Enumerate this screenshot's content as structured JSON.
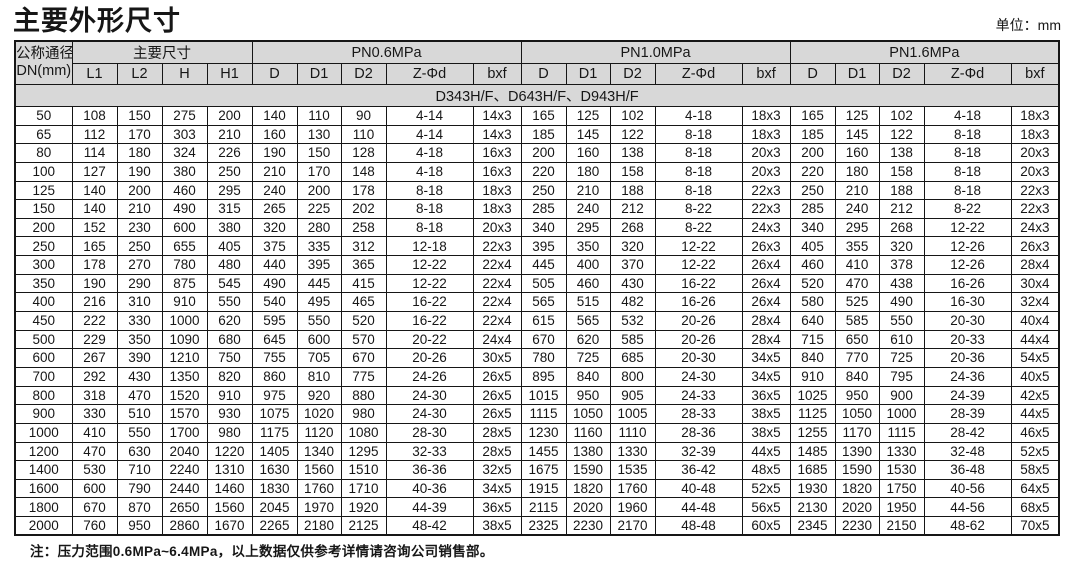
{
  "page": {
    "title": "主要外形尺寸",
    "unit_label": "单位：mm",
    "note": "注：压力范围0.6MPa~6.4MPa，以上数据仅供参考详情请咨询公司销售部。"
  },
  "table": {
    "dn_header_line1": "公称通径",
    "dn_header_line2": "DN(mm)",
    "groups": [
      {
        "label": "主要尺寸",
        "cols": [
          "L1",
          "L2",
          "H",
          "H1"
        ]
      },
      {
        "label": "PN0.6MPa",
        "cols": [
          "D",
          "D1",
          "D2",
          "Z-Φd",
          "bxf"
        ]
      },
      {
        "label": "PN1.0MPa",
        "cols": [
          "D",
          "D1",
          "D2",
          "Z-Φd",
          "bxf"
        ]
      },
      {
        "label": "PN1.6MPa",
        "cols": [
          "D",
          "D1",
          "D2",
          "Z-Φd",
          "bxf"
        ]
      }
    ],
    "model_band": "D343H/F、D643H/F、D943H/F",
    "rows": [
      [
        "50",
        "108",
        "150",
        "275",
        "200",
        "140",
        "110",
        "90",
        "4-14",
        "14x3",
        "165",
        "125",
        "102",
        "4-18",
        "18x3",
        "165",
        "125",
        "102",
        "4-18",
        "18x3"
      ],
      [
        "65",
        "112",
        "170",
        "303",
        "210",
        "160",
        "130",
        "110",
        "4-14",
        "14x3",
        "185",
        "145",
        "122",
        "8-18",
        "18x3",
        "185",
        "145",
        "122",
        "8-18",
        "18x3"
      ],
      [
        "80",
        "114",
        "180",
        "324",
        "226",
        "190",
        "150",
        "128",
        "4-18",
        "16x3",
        "200",
        "160",
        "138",
        "8-18",
        "20x3",
        "200",
        "160",
        "138",
        "8-18",
        "20x3"
      ],
      [
        "100",
        "127",
        "190",
        "380",
        "250",
        "210",
        "170",
        "148",
        "4-18",
        "16x3",
        "220",
        "180",
        "158",
        "8-18",
        "20x3",
        "220",
        "180",
        "158",
        "8-18",
        "20x3"
      ],
      [
        "125",
        "140",
        "200",
        "460",
        "295",
        "240",
        "200",
        "178",
        "8-18",
        "18x3",
        "250",
        "210",
        "188",
        "8-18",
        "22x3",
        "250",
        "210",
        "188",
        "8-18",
        "22x3"
      ],
      [
        "150",
        "140",
        "210",
        "490",
        "315",
        "265",
        "225",
        "202",
        "8-18",
        "18x3",
        "285",
        "240",
        "212",
        "8-22",
        "22x3",
        "285",
        "240",
        "212",
        "8-22",
        "22x3"
      ],
      [
        "200",
        "152",
        "230",
        "600",
        "380",
        "320",
        "280",
        "258",
        "8-18",
        "20x3",
        "340",
        "295",
        "268",
        "8-22",
        "24x3",
        "340",
        "295",
        "268",
        "12-22",
        "24x3"
      ],
      [
        "250",
        "165",
        "250",
        "655",
        "405",
        "375",
        "335",
        "312",
        "12-18",
        "22x3",
        "395",
        "350",
        "320",
        "12-22",
        "26x3",
        "405",
        "355",
        "320",
        "12-26",
        "26x3"
      ],
      [
        "300",
        "178",
        "270",
        "780",
        "480",
        "440",
        "395",
        "365",
        "12-22",
        "22x4",
        "445",
        "400",
        "370",
        "12-22",
        "26x4",
        "460",
        "410",
        "378",
        "12-26",
        "28x4"
      ],
      [
        "350",
        "190",
        "290",
        "875",
        "545",
        "490",
        "445",
        "415",
        "12-22",
        "22x4",
        "505",
        "460",
        "430",
        "16-22",
        "26x4",
        "520",
        "470",
        "438",
        "16-26",
        "30x4"
      ],
      [
        "400",
        "216",
        "310",
        "910",
        "550",
        "540",
        "495",
        "465",
        "16-22",
        "22x4",
        "565",
        "515",
        "482",
        "16-26",
        "26x4",
        "580",
        "525",
        "490",
        "16-30",
        "32x4"
      ],
      [
        "450",
        "222",
        "330",
        "1000",
        "620",
        "595",
        "550",
        "520",
        "16-22",
        "22x4",
        "615",
        "565",
        "532",
        "20-26",
        "28x4",
        "640",
        "585",
        "550",
        "20-30",
        "40x4"
      ],
      [
        "500",
        "229",
        "350",
        "1090",
        "680",
        "645",
        "600",
        "570",
        "20-22",
        "24x4",
        "670",
        "620",
        "585",
        "20-26",
        "28x4",
        "715",
        "650",
        "610",
        "20-33",
        "44x4"
      ],
      [
        "600",
        "267",
        "390",
        "1210",
        "750",
        "755",
        "705",
        "670",
        "20-26",
        "30x5",
        "780",
        "725",
        "685",
        "20-30",
        "34x5",
        "840",
        "770",
        "725",
        "20-36",
        "54x5"
      ],
      [
        "700",
        "292",
        "430",
        "1350",
        "820",
        "860",
        "810",
        "775",
        "24-26",
        "26x5",
        "895",
        "840",
        "800",
        "24-30",
        "34x5",
        "910",
        "840",
        "795",
        "24-36",
        "40x5"
      ],
      [
        "800",
        "318",
        "470",
        "1520",
        "910",
        "975",
        "920",
        "880",
        "24-30",
        "26x5",
        "1015",
        "950",
        "905",
        "24-33",
        "36x5",
        "1025",
        "950",
        "900",
        "24-39",
        "42x5"
      ],
      [
        "900",
        "330",
        "510",
        "1570",
        "930",
        "1075",
        "1020",
        "980",
        "24-30",
        "26x5",
        "1115",
        "1050",
        "1005",
        "28-33",
        "38x5",
        "1125",
        "1050",
        "1000",
        "28-39",
        "44x5"
      ],
      [
        "1000",
        "410",
        "550",
        "1700",
        "980",
        "1175",
        "1120",
        "1080",
        "28-30",
        "28x5",
        "1230",
        "1160",
        "1110",
        "28-36",
        "38x5",
        "1255",
        "1170",
        "1115",
        "28-42",
        "46x5"
      ],
      [
        "1200",
        "470",
        "630",
        "2040",
        "1220",
        "1405",
        "1340",
        "1295",
        "32-33",
        "28x5",
        "1455",
        "1380",
        "1330",
        "32-39",
        "44x5",
        "1485",
        "1390",
        "1330",
        "32-48",
        "52x5"
      ],
      [
        "1400",
        "530",
        "710",
        "2240",
        "1310",
        "1630",
        "1560",
        "1510",
        "36-36",
        "32x5",
        "1675",
        "1590",
        "1535",
        "36-42",
        "48x5",
        "1685",
        "1590",
        "1530",
        "36-48",
        "58x5"
      ],
      [
        "1600",
        "600",
        "790",
        "2440",
        "1460",
        "1830",
        "1760",
        "1710",
        "40-36",
        "34x5",
        "1915",
        "1820",
        "1760",
        "40-48",
        "52x5",
        "1930",
        "1820",
        "1750",
        "40-56",
        "64x5"
      ],
      [
        "1800",
        "670",
        "870",
        "2650",
        "1560",
        "2045",
        "1970",
        "1920",
        "44-39",
        "36x5",
        "2115",
        "2020",
        "1960",
        "44-48",
        "56x5",
        "2130",
        "2020",
        "1950",
        "44-56",
        "68x5"
      ],
      [
        "2000",
        "760",
        "950",
        "2860",
        "1670",
        "2265",
        "2180",
        "2125",
        "48-42",
        "38x5",
        "2325",
        "2230",
        "2170",
        "48-48",
        "60x5",
        "2345",
        "2230",
        "2150",
        "48-62",
        "70x5"
      ]
    ]
  }
}
